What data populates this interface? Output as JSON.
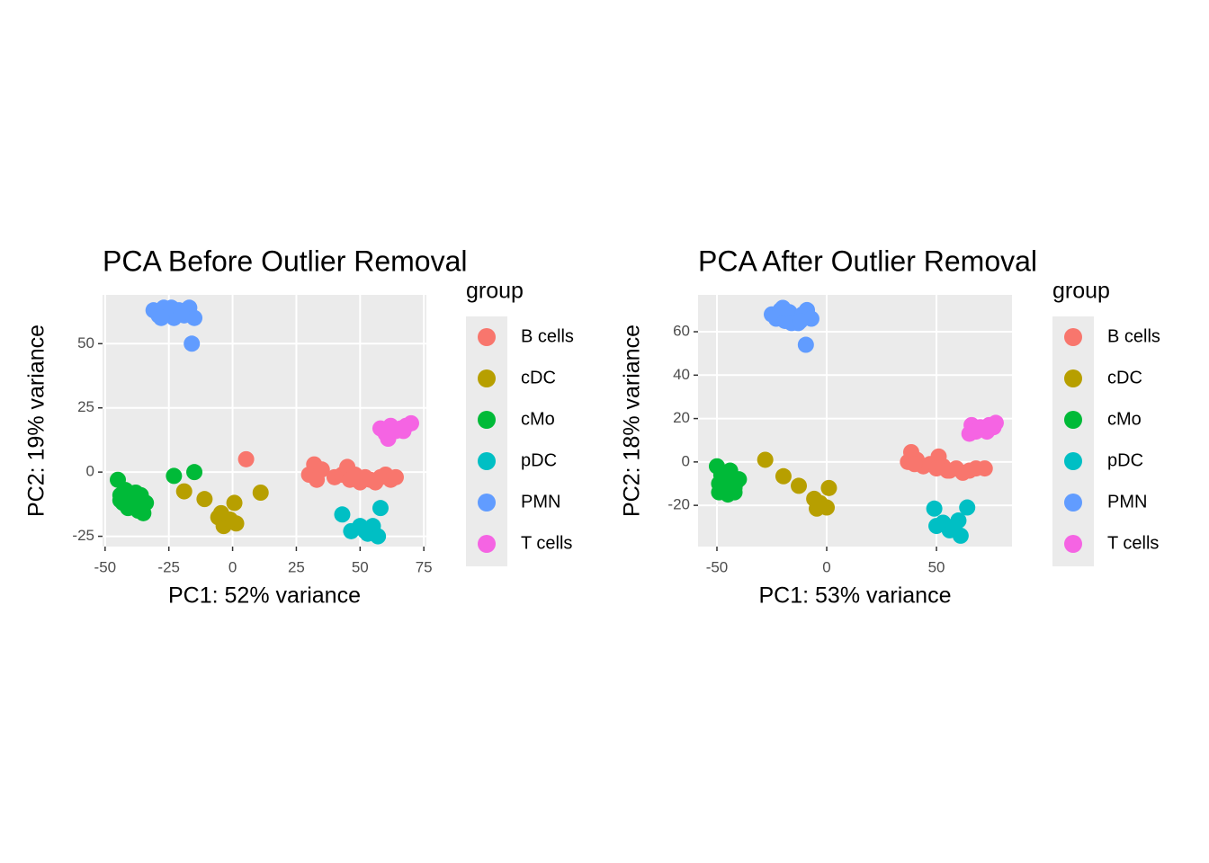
{
  "chart_data": [
    {
      "type": "scatter",
      "title": "PCA Before Outlier Removal",
      "x_label": "PC1: 52% variance",
      "y_label": "PC2: 19% variance",
      "legend_title": "group",
      "xlim": [
        -51,
        76
      ],
      "ylim": [
        -29,
        69
      ],
      "xticks": [
        -50,
        -25,
        0,
        25,
        50,
        75
      ],
      "yticks": [
        -25,
        0,
        25,
        50
      ],
      "grid": true,
      "legend": "right",
      "series": [
        {
          "name": "B cells",
          "color": "#F8766D",
          "x": [
            5.3,
            30,
            32,
            33,
            35,
            40,
            43,
            45,
            46,
            48,
            50,
            52,
            54,
            56,
            58,
            60,
            62,
            64
          ],
          "y": [
            5,
            -1,
            3,
            -3,
            1,
            -2,
            -1,
            2,
            -3,
            -1,
            -4,
            -2,
            -3,
            -4,
            -2,
            -1,
            -3,
            -2
          ]
        },
        {
          "name": "cDC",
          "color": "#B79F00",
          "x": [
            -19,
            -11,
            0.7,
            11,
            -5.6,
            -3.5,
            1.4,
            -1,
            -4.5
          ],
          "y": [
            -7.5,
            -10.5,
            -12,
            -8,
            -17.6,
            -21,
            -20,
            -18.5,
            -16
          ]
        },
        {
          "name": "cMo",
          "color": "#00BA38",
          "x": [
            -23,
            -15,
            -45,
            -44,
            -43,
            -42,
            -41,
            -40,
            -39,
            -38,
            -37,
            -36,
            -35,
            -34,
            -44,
            -42,
            -40,
            -38,
            -36
          ],
          "y": [
            -1.5,
            0,
            -3,
            -9,
            -12,
            -7,
            -14,
            -10,
            -13,
            -8,
            -15,
            -11,
            -16,
            -12,
            -11,
            -10,
            -12,
            -14,
            -9
          ]
        },
        {
          "name": "pDC",
          "color": "#00BFC4",
          "x": [
            43,
            46.5,
            50,
            53,
            57,
            58,
            55,
            52
          ],
          "y": [
            -16.5,
            -23,
            -21,
            -24,
            -25,
            -14,
            -21,
            -23
          ]
        },
        {
          "name": "PMN",
          "color": "#619CFF",
          "x": [
            -16,
            -31,
            -29,
            -27,
            -25,
            -23,
            -21,
            -19,
            -17,
            -15,
            -28,
            -24,
            -20
          ],
          "y": [
            50,
            63,
            61,
            64,
            62,
            60,
            63,
            61,
            64,
            60,
            60,
            64,
            62
          ]
        },
        {
          "name": "T cells",
          "color": "#F564E3",
          "x": [
            61,
            58,
            60,
            62,
            64,
            66,
            68,
            70,
            63,
            67
          ],
          "y": [
            13,
            17,
            15,
            18,
            16,
            17,
            18,
            19,
            17,
            16
          ]
        }
      ]
    },
    {
      "type": "scatter",
      "title": "PCA After Outlier Removal",
      "x_label": "PC1: 53% variance",
      "y_label": "PC2: 18% variance",
      "legend_title": "group",
      "xlim": [
        -58.6,
        84.4
      ],
      "ylim": [
        -39,
        77
      ],
      "xticks": [
        -50,
        0,
        50
      ],
      "yticks": [
        -20,
        0,
        20,
        40,
        60
      ],
      "grid": true,
      "legend": "right",
      "series": [
        {
          "name": "B cells",
          "color": "#F8766D",
          "x": [
            38.5,
            51,
            37,
            41,
            44,
            47,
            50,
            53,
            56,
            59,
            62,
            65,
            68,
            72,
            40,
            55
          ],
          "y": [
            4.5,
            2.5,
            0,
            1,
            -2,
            -1,
            -3,
            -2,
            -4,
            -3,
            -5,
            -4,
            -3,
            -3,
            -1,
            -4
          ]
        },
        {
          "name": "cDC",
          "color": "#B79F00",
          "x": [
            -28,
            -19.7,
            -12.7,
            -5.7,
            -4.5,
            1,
            0,
            -3
          ],
          "y": [
            1,
            -6.6,
            -11,
            -17,
            -21.5,
            -12,
            -21,
            -19
          ]
        },
        {
          "name": "cMo",
          "color": "#00BA38",
          "x": [
            -50,
            -49,
            -48,
            -47,
            -46,
            -45,
            -44,
            -43,
            -42,
            -41,
            -40,
            -49,
            -46,
            -44,
            -42
          ],
          "y": [
            -2,
            -10,
            -6,
            -13,
            -8,
            -15,
            -11,
            -7,
            -14,
            -9,
            -8,
            -14,
            -12,
            -4,
            -12
          ]
        },
        {
          "name": "pDC",
          "color": "#00BFC4",
          "x": [
            49,
            64,
            50,
            56,
            61,
            60,
            53,
            58
          ],
          "y": [
            -21.5,
            -21,
            -29.5,
            -31.5,
            -34,
            -27,
            -28,
            -30
          ]
        },
        {
          "name": "PMN",
          "color": "#619CFF",
          "x": [
            -9.5,
            -25,
            -23,
            -21,
            -19,
            -17,
            -15,
            -13,
            -11,
            -9,
            -7,
            -20,
            -16,
            -12
          ],
          "y": [
            54,
            68,
            66,
            70,
            65,
            69,
            67,
            64,
            68,
            70,
            66,
            71,
            64,
            65
          ]
        },
        {
          "name": "T cells",
          "color": "#F564E3",
          "x": [
            65,
            66,
            68,
            70,
            72,
            74,
            76,
            77,
            70,
            73
          ],
          "y": [
            13,
            17,
            14,
            16,
            15,
            17,
            16,
            18,
            15,
            14
          ]
        }
      ]
    }
  ]
}
